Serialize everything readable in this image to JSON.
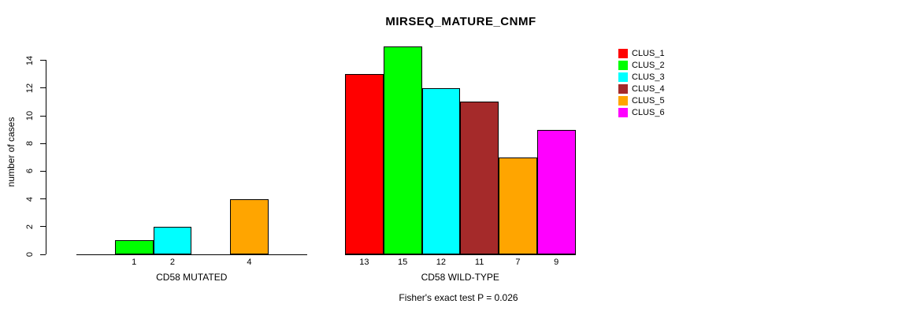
{
  "chart_data": {
    "type": "bar",
    "title": "MIRSEQ_MATURE_CNMF",
    "ylabel": "number of cases",
    "ylim": [
      0,
      15
    ],
    "yticks": [
      0,
      2,
      4,
      6,
      8,
      10,
      12,
      14
    ],
    "grid": false,
    "legend_position": "right",
    "clusters": [
      "CLUS_1",
      "CLUS_2",
      "CLUS_3",
      "CLUS_4",
      "CLUS_5",
      "CLUS_6"
    ],
    "colors": [
      "#FF0000",
      "#00FF00",
      "#00FFFF",
      "#A52A2A",
      "#FFA500",
      "#FF00FF"
    ],
    "groups": [
      {
        "label": "CD58 MUTATED",
        "values": [
          0,
          1,
          2,
          0,
          4,
          0
        ]
      },
      {
        "label": "CD58 WILD-TYPE",
        "values": [
          13,
          15,
          12,
          11,
          7,
          9
        ]
      }
    ],
    "annotation": "Fisher's exact test P = 0.026"
  }
}
